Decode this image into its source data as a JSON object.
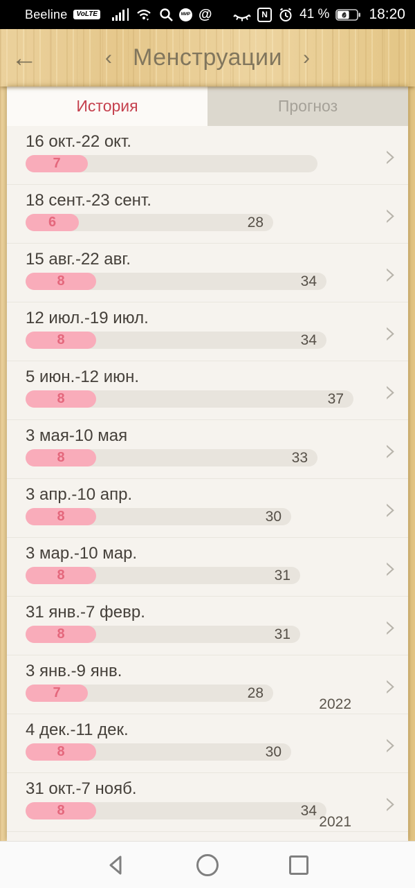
{
  "status_bar": {
    "carrier": "Beeline",
    "volte_badge": "VoLTE",
    "mir_badge": "МИР",
    "at_glyph": "@",
    "nfc_letter": "N",
    "battery_percent": "41 %",
    "time": "18:20",
    "icons": [
      "signal-strength-icon",
      "wifi-icon",
      "search-icon",
      "mir-pay-icon",
      "at-icon",
      "eye-comfort-icon",
      "nfc-icon",
      "alarm-icon",
      "battery-icon"
    ]
  },
  "header": {
    "back_glyph": "←",
    "prev_glyph": "‹",
    "title": "Менструации",
    "next_glyph": "›"
  },
  "tabs": [
    {
      "label": "История",
      "active": true
    },
    {
      "label": "Прогноз",
      "active": false
    }
  ],
  "glyphs": {
    "row_chevron": "›"
  },
  "history": {
    "rows": [
      {
        "range": "16 окт.-22 окт.",
        "period_days": 7,
        "cycle_days": null,
        "bar_days": 33
      },
      {
        "range": "18 сент.-23 сент.",
        "period_days": 6,
        "cycle_days": 28
      },
      {
        "range": "15 авг.-22 авг.",
        "period_days": 8,
        "cycle_days": 34
      },
      {
        "range": "12 июл.-19 июл.",
        "period_days": 8,
        "cycle_days": 34
      },
      {
        "range": "5 июн.-12 июн.",
        "period_days": 8,
        "cycle_days": 37
      },
      {
        "range": "3 мая-10 мая",
        "period_days": 8,
        "cycle_days": 33
      },
      {
        "range": "3 апр.-10 апр.",
        "period_days": 8,
        "cycle_days": 30
      },
      {
        "range": "3 мар.-10 мар.",
        "period_days": 8,
        "cycle_days": 31
      },
      {
        "range": "31 янв.-7 февр.",
        "period_days": 8,
        "cycle_days": 31
      },
      {
        "range": "3 янв.-9 янв.",
        "period_days": 7,
        "cycle_days": 28,
        "year_label": "2022"
      },
      {
        "range": "4 дек.-11 дек.",
        "period_days": 8,
        "cycle_days": 30
      },
      {
        "range": "31 окт.-7 нояб.",
        "period_days": 8,
        "cycle_days": 34,
        "year_label": "2021"
      }
    ]
  },
  "nav_bar": {
    "icons": [
      "back-icon",
      "home-icon",
      "recents-icon"
    ]
  },
  "colors": {
    "period_pink": "#f9acba",
    "period_number": "#e4677c",
    "track_gray": "#e8e4dd",
    "tab_active_text": "#c5414e",
    "wood": "#e8cc93",
    "header_text": "#81765d"
  }
}
